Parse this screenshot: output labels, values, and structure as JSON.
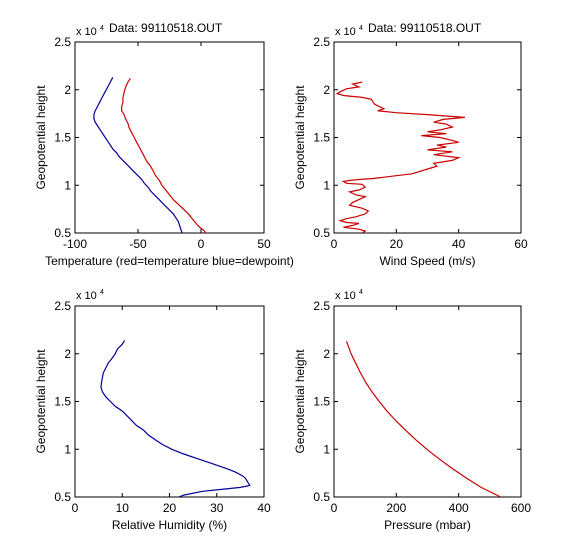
{
  "chart_data": [
    {
      "type": "line",
      "title": "Data: 99110518.OUT",
      "xlabel": "Temperature (red=temperature blue=dewpoint)",
      "ylabel": "Geopotential height",
      "xlim": [
        -100,
        50
      ],
      "ylim": [
        0.5,
        2.5
      ],
      "x_ticks": [
        "-100",
        "-50",
        "0",
        "50"
      ],
      "y_ticks": [
        "0.5",
        "1",
        "1.5",
        "2",
        "2.5"
      ],
      "y_multiplier": "x 10",
      "y_multiplier_exp": "4",
      "grid": false,
      "series": [
        {
          "color": "#cc0000",
          "points": [
            [
              -56,
              2.12
            ],
            [
              -58,
              2.08
            ],
            [
              -60,
              2.02
            ],
            [
              -61,
              1.97
            ],
            [
              -62,
              1.92
            ],
            [
              -62,
              1.87
            ],
            [
              -63,
              1.82
            ],
            [
              -63,
              1.78
            ],
            [
              -61,
              1.74
            ],
            [
              -60,
              1.7
            ],
            [
              -58,
              1.65
            ],
            [
              -57,
              1.6
            ],
            [
              -55,
              1.55
            ],
            [
              -53,
              1.5
            ],
            [
              -51,
              1.45
            ],
            [
              -49,
              1.4
            ],
            [
              -47,
              1.35
            ],
            [
              -45,
              1.3
            ],
            [
              -43,
              1.25
            ],
            [
              -40,
              1.2
            ],
            [
              -38,
              1.15
            ],
            [
              -36,
              1.1
            ],
            [
              -33,
              1.05
            ],
            [
              -31,
              1.0
            ],
            [
              -28,
              0.95
            ],
            [
              -25,
              0.9
            ],
            [
              -22,
              0.85
            ],
            [
              -18,
              0.8
            ],
            [
              -14,
              0.75
            ],
            [
              -10,
              0.7
            ],
            [
              -7,
              0.65
            ],
            [
              -4,
              0.6
            ],
            [
              -1,
              0.56
            ],
            [
              2,
              0.53
            ],
            [
              4,
              0.5
            ]
          ]
        },
        {
          "color": "#000099",
          "points": [
            [
              -70,
              2.13
            ],
            [
              -72,
              2.08
            ],
            [
              -74,
              2.03
            ],
            [
              -76,
              1.98
            ],
            [
              -78,
              1.93
            ],
            [
              -80,
              1.88
            ],
            [
              -82,
              1.83
            ],
            [
              -84,
              1.78
            ],
            [
              -85,
              1.74
            ],
            [
              -85,
              1.7
            ],
            [
              -84,
              1.66
            ],
            [
              -82,
              1.62
            ],
            [
              -80,
              1.58
            ],
            [
              -78,
              1.54
            ],
            [
              -76,
              1.5
            ],
            [
              -74,
              1.46
            ],
            [
              -72,
              1.42
            ],
            [
              -70,
              1.38
            ],
            [
              -67,
              1.34
            ],
            [
              -65,
              1.3
            ],
            [
              -62,
              1.26
            ],
            [
              -59,
              1.22
            ],
            [
              -56,
              1.18
            ],
            [
              -53,
              1.14
            ],
            [
              -50,
              1.1
            ],
            [
              -47,
              1.06
            ],
            [
              -45,
              1.02
            ],
            [
              -42,
              0.98
            ],
            [
              -40,
              0.94
            ],
            [
              -37,
              0.9
            ],
            [
              -34,
              0.86
            ],
            [
              -31,
              0.82
            ],
            [
              -28,
              0.78
            ],
            [
              -25,
              0.74
            ],
            [
              -22,
              0.7
            ],
            [
              -20,
              0.66
            ],
            [
              -18,
              0.62
            ],
            [
              -17,
              0.58
            ],
            [
              -16,
              0.54
            ],
            [
              -15,
              0.5
            ]
          ]
        }
      ]
    },
    {
      "type": "line",
      "title": "Data: 99110518.OUT",
      "xlabel": "Wind Speed (m/s)",
      "ylabel": "Geopotential height",
      "xlim": [
        0,
        60
      ],
      "ylim": [
        0.5,
        2.5
      ],
      "x_ticks": [
        "0",
        "20",
        "40",
        "60"
      ],
      "y_ticks": [
        "0.5",
        "1",
        "1.5",
        "2",
        "2.5"
      ],
      "y_multiplier": "x 10",
      "y_multiplier_exp": "4",
      "grid": false,
      "series": [
        {
          "color": "#cc0000",
          "points": [
            [
              9,
              2.08
            ],
            [
              6,
              2.06
            ],
            [
              8,
              2.03
            ],
            [
              4,
              2.01
            ],
            [
              2,
              1.98
            ],
            [
              1,
              1.96
            ],
            [
              3,
              1.94
            ],
            [
              9,
              1.92
            ],
            [
              12,
              1.9
            ],
            [
              13,
              1.85
            ],
            [
              16,
              1.8
            ],
            [
              14,
              1.78
            ],
            [
              20,
              1.76
            ],
            [
              30,
              1.74
            ],
            [
              42,
              1.71
            ],
            [
              35,
              1.69
            ],
            [
              32,
              1.66
            ],
            [
              36,
              1.64
            ],
            [
              38,
              1.61
            ],
            [
              34,
              1.58
            ],
            [
              30,
              1.56
            ],
            [
              36,
              1.54
            ],
            [
              28,
              1.52
            ],
            [
              34,
              1.5
            ],
            [
              38,
              1.47
            ],
            [
              40,
              1.45
            ],
            [
              33,
              1.42
            ],
            [
              36,
              1.4
            ],
            [
              30,
              1.37
            ],
            [
              38,
              1.35
            ],
            [
              32,
              1.32
            ],
            [
              40,
              1.29
            ],
            [
              38,
              1.26
            ],
            [
              32,
              1.23
            ],
            [
              33,
              1.2
            ],
            [
              30,
              1.17
            ],
            [
              27,
              1.14
            ],
            [
              25,
              1.12
            ],
            [
              20,
              1.1
            ],
            [
              15,
              1.08
            ],
            [
              12,
              1.07
            ],
            [
              8,
              1.06
            ],
            [
              5,
              1.05
            ],
            [
              3,
              1.04
            ],
            [
              4,
              1.02
            ],
            [
              9,
              1.01
            ],
            [
              10,
              0.98
            ],
            [
              8,
              0.95
            ],
            [
              5,
              0.93
            ],
            [
              7,
              0.9
            ],
            [
              10,
              0.88
            ],
            [
              8,
              0.85
            ],
            [
              6,
              0.82
            ],
            [
              5,
              0.79
            ],
            [
              9,
              0.76
            ],
            [
              11,
              0.73
            ],
            [
              10,
              0.7
            ],
            [
              7,
              0.67
            ],
            [
              4,
              0.65
            ],
            [
              2,
              0.63
            ],
            [
              4,
              0.61
            ],
            [
              8,
              0.6
            ],
            [
              6,
              0.58
            ],
            [
              3,
              0.56
            ],
            [
              8,
              0.54
            ],
            [
              10,
              0.52
            ],
            [
              9,
              0.5
            ]
          ]
        }
      ]
    },
    {
      "type": "line",
      "title": "",
      "xlabel": "Relative Humidity (%)",
      "ylabel": "Geopotential height",
      "xlim": [
        0,
        40
      ],
      "ylim": [
        0.5,
        2.5
      ],
      "x_ticks": [
        "0",
        "10",
        "20",
        "30",
        "40"
      ],
      "y_ticks": [
        "0.5",
        "1",
        "1.5",
        "2",
        "2.5"
      ],
      "y_multiplier": "x 10",
      "y_multiplier_exp": "4",
      "grid": false,
      "series": [
        {
          "color": "#000099",
          "points": [
            [
              10.5,
              2.14
            ],
            [
              10,
              2.1
            ],
            [
              9,
              2.05
            ],
            [
              8.5,
              2.0
            ],
            [
              7.8,
              1.95
            ],
            [
              7,
              1.9
            ],
            [
              6.5,
              1.85
            ],
            [
              6,
              1.8
            ],
            [
              5.8,
              1.75
            ],
            [
              5.6,
              1.7
            ],
            [
              5.5,
              1.65
            ],
            [
              5.8,
              1.6
            ],
            [
              6.5,
              1.55
            ],
            [
              7.5,
              1.5
            ],
            [
              8.5,
              1.45
            ],
            [
              10,
              1.4
            ],
            [
              11,
              1.35
            ],
            [
              12,
              1.3
            ],
            [
              13,
              1.25
            ],
            [
              14.5,
              1.2
            ],
            [
              15.5,
              1.15
            ],
            [
              17,
              1.1
            ],
            [
              18.5,
              1.05
            ],
            [
              20.5,
              1.0
            ],
            [
              23,
              0.95
            ],
            [
              26,
              0.9
            ],
            [
              29,
              0.85
            ],
            [
              32,
              0.8
            ],
            [
              34,
              0.76
            ],
            [
              35.5,
              0.72
            ],
            [
              36,
              0.7
            ],
            [
              36.5,
              0.66
            ],
            [
              37,
              0.62
            ],
            [
              35,
              0.6
            ],
            [
              31,
              0.58
            ],
            [
              27,
              0.56
            ],
            [
              23,
              0.52
            ],
            [
              22,
              0.5
            ]
          ]
        }
      ]
    },
    {
      "type": "line",
      "title": "",
      "xlabel": "Pressure (mbar)",
      "ylabel": "Geopotential height",
      "xlim": [
        0,
        600
      ],
      "ylim": [
        0.5,
        2.5
      ],
      "x_ticks": [
        "0",
        "200",
        "400",
        "600"
      ],
      "y_ticks": [
        "0.5",
        "1",
        "1.5",
        "2",
        "2.5"
      ],
      "y_multiplier": "x 10",
      "y_multiplier_exp": "4",
      "grid": false,
      "series": [
        {
          "color": "#cc0000",
          "points": [
            [
              40,
              2.13
            ],
            [
              55,
              2.0
            ],
            [
              70,
              1.9
            ],
            [
              85,
              1.8
            ],
            [
              102,
              1.7
            ],
            [
              122,
              1.6
            ],
            [
              145,
              1.5
            ],
            [
              170,
              1.4
            ],
            [
              198,
              1.3
            ],
            [
              229,
              1.2
            ],
            [
              262,
              1.1
            ],
            [
              298,
              1.0
            ],
            [
              337,
              0.9
            ],
            [
              379,
              0.8
            ],
            [
              424,
              0.7
            ],
            [
              472,
              0.6
            ],
            [
              535,
              0.5
            ]
          ]
        }
      ]
    }
  ]
}
